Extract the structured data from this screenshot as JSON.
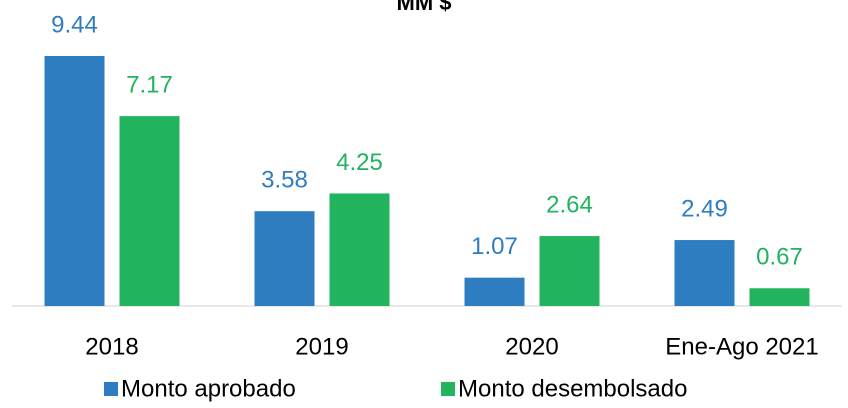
{
  "chart_data": {
    "type": "bar",
    "title": "MM $",
    "categories": [
      "2018",
      "2019",
      "2020",
      "Ene-Ago 2021"
    ],
    "series": [
      {
        "name": "Monto aprobado",
        "color": "#2e7dc0",
        "values": [
          9.44,
          3.58,
          1.07,
          2.49
        ]
      },
      {
        "name": "Monto desembolsado",
        "color": "#22b35e",
        "values": [
          7.17,
          4.25,
          2.64,
          0.67
        ]
      }
    ],
    "legend": "bottom"
  }
}
